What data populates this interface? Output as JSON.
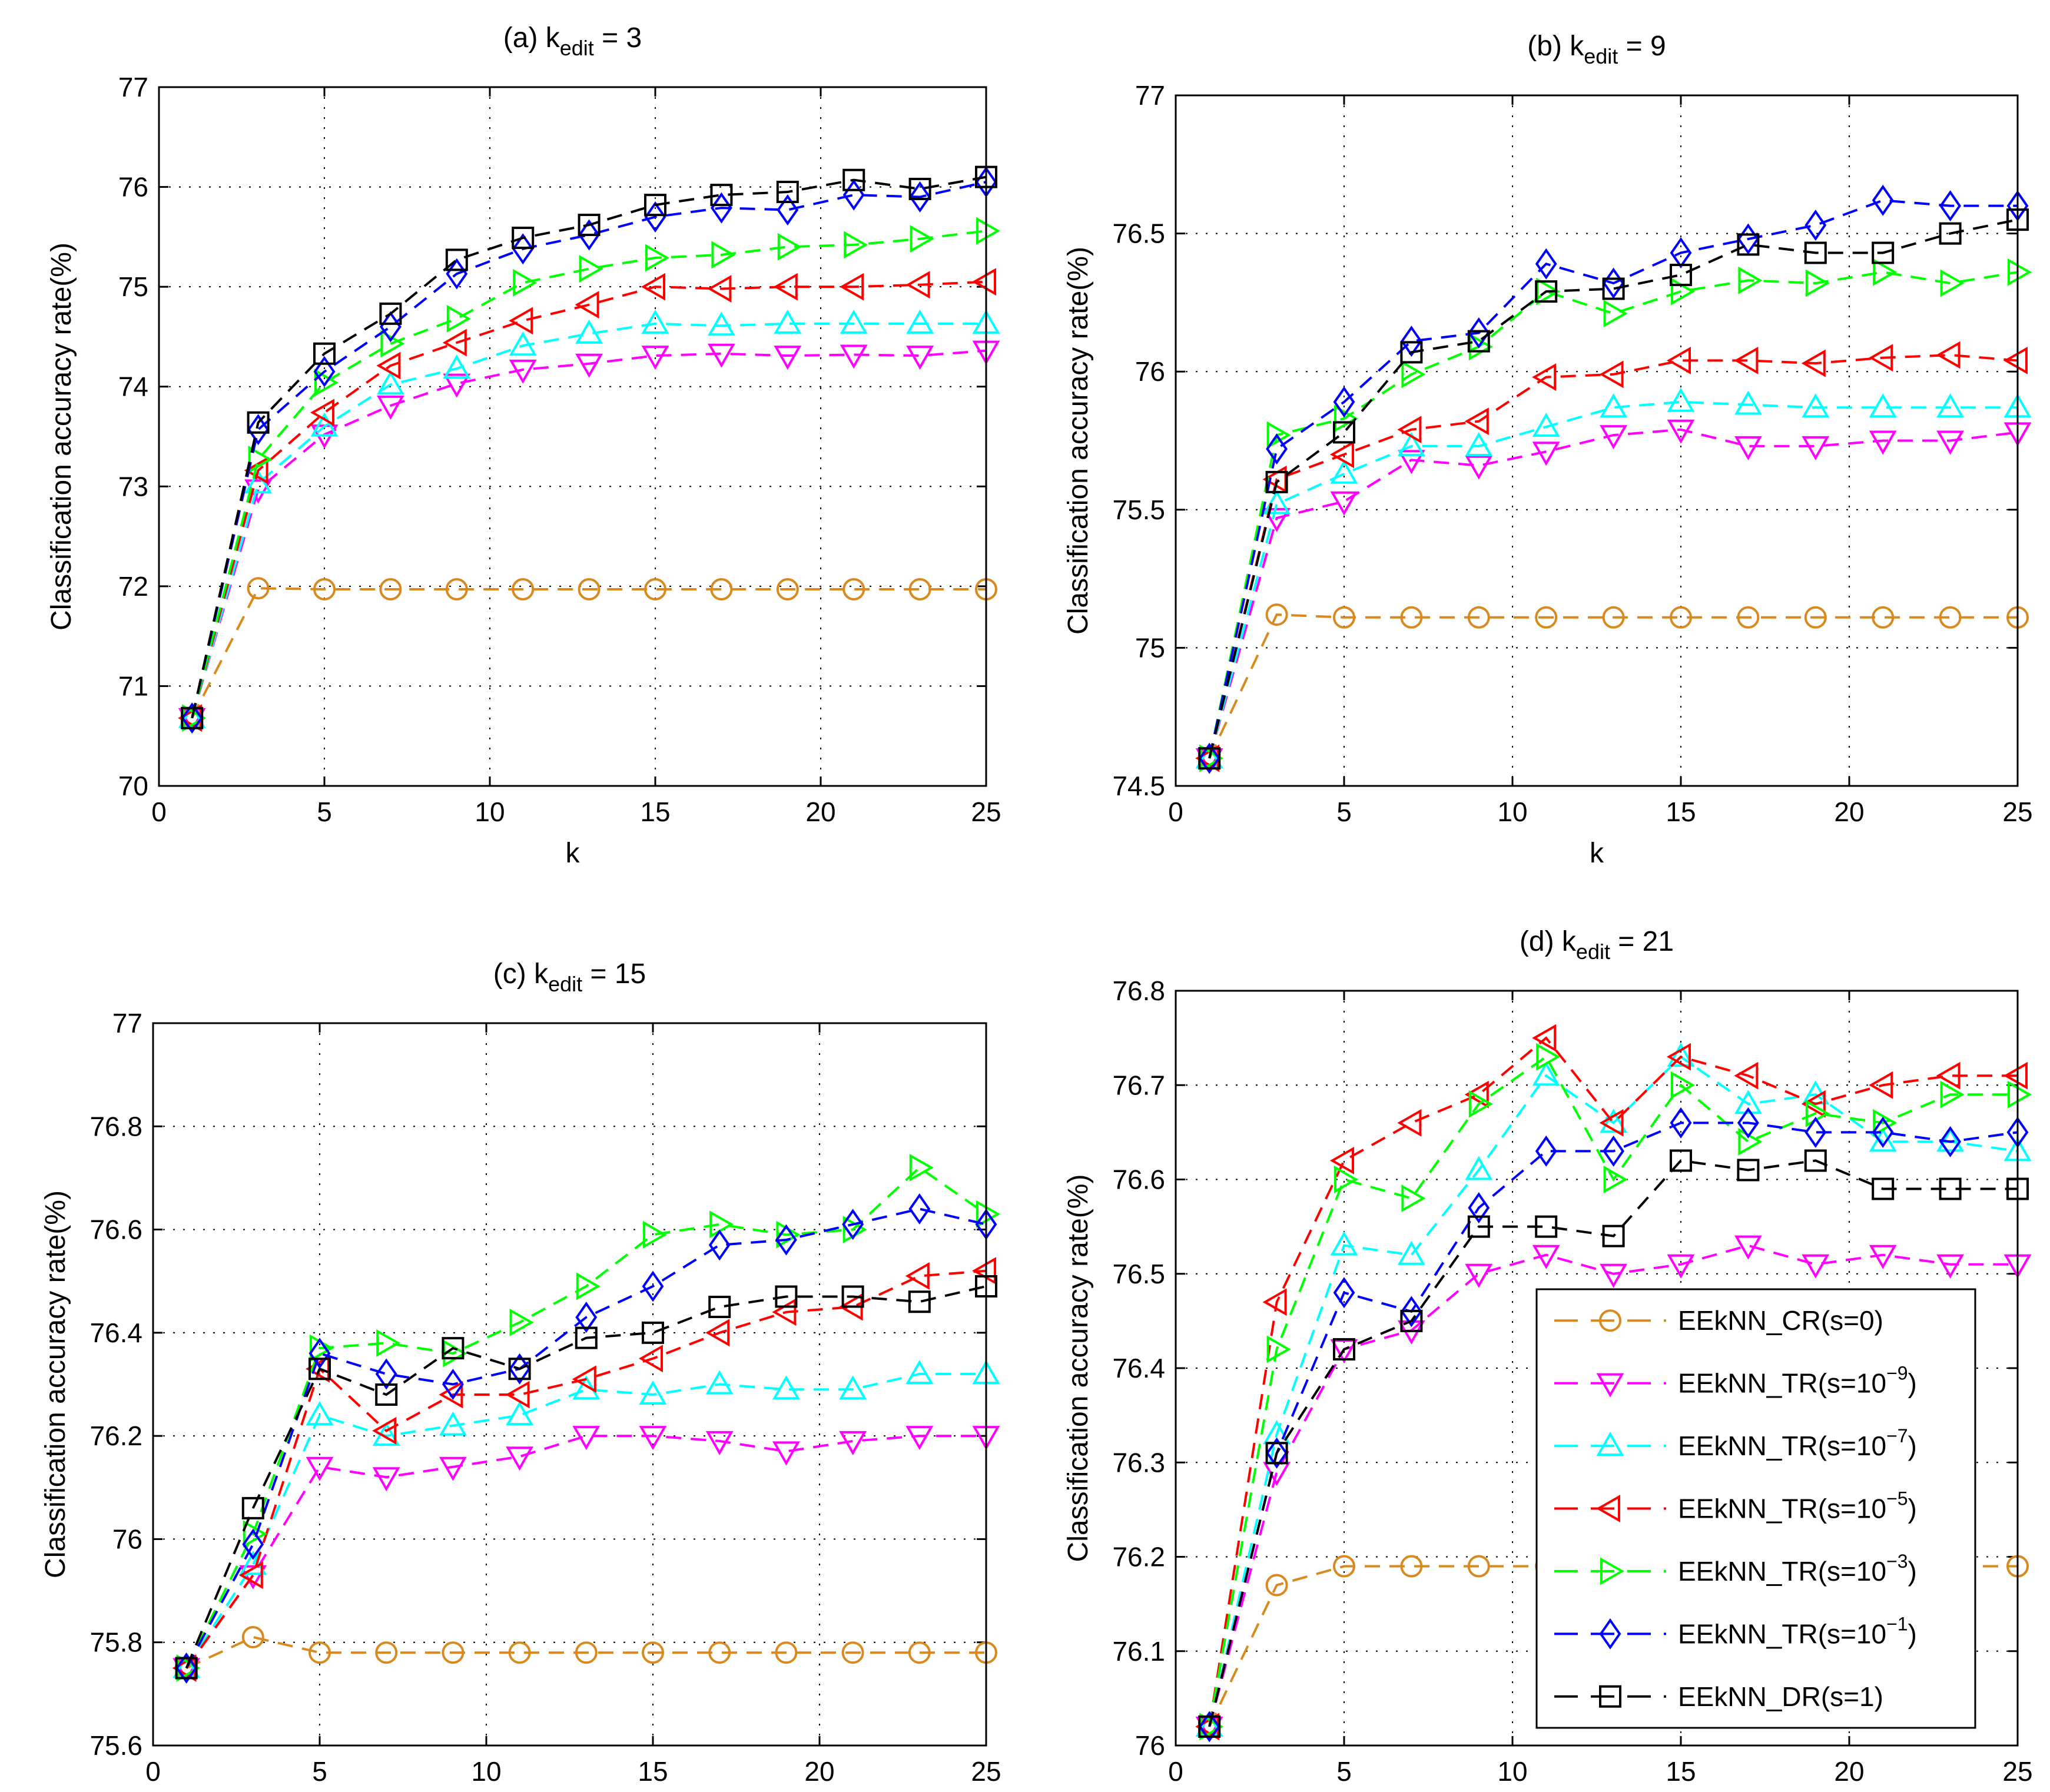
{
  "chart_data": [
    {
      "type": "line",
      "title": "(a) k",
      "title_subscript": "edit",
      "title_suffix": " = 3",
      "xlabel": "k",
      "ylabel": "Classification accuracy rate(%)",
      "xlim": [
        0,
        25
      ],
      "ylim": [
        70,
        77
      ],
      "xticks": [
        0,
        5,
        10,
        15,
        20,
        25
      ],
      "xtick_labels": [
        "0",
        "5",
        "10",
        "15",
        "20",
        "25"
      ],
      "yticks": [
        70,
        71,
        72,
        73,
        74,
        75,
        76,
        77
      ],
      "ytick_labels": [
        "70",
        "71",
        "72",
        "73",
        "74",
        "75",
        "76",
        "77"
      ],
      "grid": true,
      "x": [
        1,
        3,
        5,
        7,
        9,
        11,
        13,
        15,
        17,
        19,
        21,
        23,
        25
      ],
      "series": [
        {
          "id": "cr",
          "values": [
            70.68,
            71.98,
            71.97,
            71.97,
            71.97,
            71.97,
            71.97,
            71.97,
            71.97,
            71.97,
            71.97,
            71.97,
            71.97
          ]
        },
        {
          "id": "tr9",
          "values": [
            70.68,
            72.97,
            73.52,
            73.81,
            74.03,
            74.17,
            74.23,
            74.31,
            74.33,
            74.31,
            74.32,
            74.31,
            74.36
          ]
        },
        {
          "id": "tr7",
          "values": [
            70.68,
            73.03,
            73.6,
            74.02,
            74.18,
            74.41,
            74.53,
            74.63,
            74.61,
            74.63,
            74.63,
            74.63,
            74.63
          ]
        },
        {
          "id": "tr5",
          "values": [
            70.68,
            73.16,
            73.74,
            74.21,
            74.44,
            74.66,
            74.82,
            75.0,
            74.98,
            75.0,
            75.0,
            75.02,
            75.05
          ]
        },
        {
          "id": "tr3",
          "values": [
            70.68,
            73.27,
            74.04,
            74.43,
            74.68,
            75.04,
            75.18,
            75.29,
            75.32,
            75.4,
            75.42,
            75.48,
            75.56
          ]
        },
        {
          "id": "tr1",
          "values": [
            70.68,
            73.57,
            74.15,
            74.6,
            75.13,
            75.38,
            75.52,
            75.7,
            75.79,
            75.77,
            75.92,
            75.9,
            76.05
          ]
        },
        {
          "id": "dr",
          "values": [
            70.68,
            73.64,
            74.33,
            74.73,
            75.27,
            75.49,
            75.62,
            75.82,
            75.92,
            75.95,
            76.07,
            75.98,
            76.1
          ]
        }
      ]
    },
    {
      "type": "line",
      "title": "(b) k",
      "title_subscript": "edit",
      "title_suffix": " = 9",
      "xlabel": "k",
      "ylabel": "Classification accuracy rate(%)",
      "xlim": [
        0,
        25
      ],
      "ylim": [
        74.5,
        77
      ],
      "xticks": [
        0,
        5,
        10,
        15,
        20,
        25
      ],
      "xtick_labels": [
        "0",
        "5",
        "10",
        "15",
        "20",
        "25"
      ],
      "yticks": [
        74.5,
        75,
        75.5,
        76,
        76.5,
        77
      ],
      "ytick_labels": [
        "74.5",
        "75",
        "75.5",
        "76",
        "76.5",
        "77"
      ],
      "grid": true,
      "x": [
        1,
        3,
        5,
        7,
        9,
        11,
        13,
        15,
        17,
        19,
        21,
        23,
        25
      ],
      "series": [
        {
          "id": "cr",
          "values": [
            74.6,
            75.12,
            75.11,
            75.11,
            75.11,
            75.11,
            75.11,
            75.11,
            75.11,
            75.11,
            75.11,
            75.11,
            75.11
          ]
        },
        {
          "id": "tr9",
          "values": [
            74.6,
            75.47,
            75.53,
            75.68,
            75.66,
            75.71,
            75.77,
            75.79,
            75.73,
            75.73,
            75.75,
            75.75,
            75.78
          ]
        },
        {
          "id": "tr7",
          "values": [
            74.6,
            75.52,
            75.63,
            75.73,
            75.73,
            75.8,
            75.87,
            75.89,
            75.88,
            75.87,
            75.87,
            75.87,
            75.87
          ]
        },
        {
          "id": "tr5",
          "values": [
            74.6,
            75.61,
            75.7,
            75.79,
            75.82,
            75.98,
            75.99,
            76.04,
            76.04,
            76.03,
            76.05,
            76.06,
            76.04
          ]
        },
        {
          "id": "tr3",
          "values": [
            74.6,
            75.77,
            75.83,
            75.99,
            76.09,
            76.29,
            76.21,
            76.29,
            76.33,
            76.32,
            76.36,
            76.32,
            76.36
          ]
        },
        {
          "id": "tr1",
          "values": [
            74.6,
            75.72,
            75.89,
            76.11,
            76.14,
            76.39,
            76.32,
            76.43,
            76.48,
            76.53,
            76.62,
            76.6,
            76.6
          ]
        },
        {
          "id": "dr",
          "values": [
            74.6,
            75.6,
            75.78,
            76.07,
            76.11,
            76.29,
            76.3,
            76.35,
            76.46,
            76.43,
            76.43,
            76.5,
            76.55
          ]
        }
      ]
    },
    {
      "type": "line",
      "title": "(c) k",
      "title_subscript": "edit",
      "title_suffix": " = 15",
      "xlabel": "k",
      "ylabel": "Classification accuracy rate(%)",
      "xlim": [
        0,
        25
      ],
      "ylim": [
        75.6,
        77
      ],
      "xticks": [
        0,
        5,
        10,
        15,
        20,
        25
      ],
      "xtick_labels": [
        "0",
        "5",
        "10",
        "15",
        "20",
        "25"
      ],
      "yticks": [
        75.6,
        75.8,
        76,
        76.2,
        76.4,
        76.6,
        76.8,
        77
      ],
      "ytick_labels": [
        "75.6",
        "75.8",
        "76",
        "76.2",
        "76.4",
        "76.6",
        "76.8",
        "77"
      ],
      "grid": true,
      "x": [
        1,
        3,
        5,
        7,
        9,
        11,
        13,
        15,
        17,
        19,
        21,
        23,
        25
      ],
      "series": [
        {
          "id": "cr",
          "values": [
            75.75,
            75.81,
            75.78,
            75.78,
            75.78,
            75.78,
            75.78,
            75.78,
            75.78,
            75.78,
            75.78,
            75.78,
            75.78
          ]
        },
        {
          "id": "tr9",
          "values": [
            75.75,
            75.93,
            76.14,
            76.12,
            76.14,
            76.16,
            76.2,
            76.2,
            76.19,
            76.17,
            76.19,
            76.2,
            76.2
          ]
        },
        {
          "id": "tr7",
          "values": [
            75.75,
            75.95,
            76.24,
            76.2,
            76.22,
            76.24,
            76.29,
            76.28,
            76.3,
            76.29,
            76.29,
            76.32,
            76.32
          ]
        },
        {
          "id": "tr5",
          "values": [
            75.75,
            75.93,
            76.33,
            76.21,
            76.28,
            76.28,
            76.31,
            76.35,
            76.4,
            76.44,
            76.45,
            76.51,
            76.52
          ]
        },
        {
          "id": "tr3",
          "values": [
            75.75,
            76.01,
            76.37,
            76.38,
            76.36,
            76.42,
            76.49,
            76.59,
            76.61,
            76.59,
            76.6,
            76.72,
            76.63
          ]
        },
        {
          "id": "tr1",
          "values": [
            75.75,
            75.99,
            76.36,
            76.32,
            76.3,
            76.33,
            76.43,
            76.49,
            76.57,
            76.58,
            76.61,
            76.64,
            76.61
          ]
        },
        {
          "id": "dr",
          "values": [
            75.75,
            76.06,
            76.33,
            76.28,
            76.37,
            76.33,
            76.39,
            76.4,
            76.45,
            76.47,
            76.47,
            76.46,
            76.49
          ]
        }
      ]
    },
    {
      "type": "line",
      "title": "(d) k",
      "title_subscript": "edit",
      "title_suffix": " = 21",
      "xlabel": "k",
      "ylabel": "Classification accuracy rate(%)",
      "xlim": [
        0,
        25
      ],
      "ylim": [
        76,
        76.8
      ],
      "xticks": [
        0,
        5,
        10,
        15,
        20,
        25
      ],
      "xtick_labels": [
        "0",
        "5",
        "10",
        "15",
        "20",
        "25"
      ],
      "yticks": [
        76,
        76.1,
        76.2,
        76.3,
        76.4,
        76.5,
        76.6,
        76.7,
        76.8
      ],
      "ytick_labels": [
        "76",
        "76.1",
        "76.2",
        "76.3",
        "76.4",
        "76.5",
        "76.6",
        "76.7",
        "76.8"
      ],
      "grid": true,
      "x": [
        1,
        3,
        5,
        7,
        9,
        11,
        13,
        15,
        17,
        19,
        21,
        23,
        25
      ],
      "series": [
        {
          "id": "cr",
          "values": [
            76.02,
            76.17,
            76.19,
            76.19,
            76.19,
            76.19,
            76.19,
            76.19,
            76.19,
            76.19,
            76.19,
            76.19,
            76.19
          ]
        },
        {
          "id": "tr9",
          "values": [
            76.02,
            76.29,
            76.42,
            76.44,
            76.5,
            76.52,
            76.5,
            76.51,
            76.53,
            76.51,
            76.52,
            76.51,
            76.51
          ]
        },
        {
          "id": "tr7",
          "values": [
            76.02,
            76.33,
            76.53,
            76.52,
            76.61,
            76.71,
            76.66,
            76.73,
            76.68,
            76.69,
            76.64,
            76.64,
            76.63
          ]
        },
        {
          "id": "tr5",
          "values": [
            76.02,
            76.47,
            76.62,
            76.66,
            76.69,
            76.75,
            76.66,
            76.73,
            76.71,
            76.68,
            76.7,
            76.71,
            76.71
          ]
        },
        {
          "id": "tr3",
          "values": [
            76.02,
            76.42,
            76.6,
            76.58,
            76.68,
            76.73,
            76.6,
            76.7,
            76.64,
            76.67,
            76.66,
            76.69,
            76.69
          ]
        },
        {
          "id": "tr1",
          "values": [
            76.02,
            76.31,
            76.48,
            76.46,
            76.57,
            76.63,
            76.63,
            76.66,
            76.66,
            76.65,
            76.65,
            76.64,
            76.65
          ]
        },
        {
          "id": "dr",
          "values": [
            76.02,
            76.31,
            76.42,
            76.45,
            76.55,
            76.55,
            76.54,
            76.62,
            76.61,
            76.62,
            76.59,
            76.59,
            76.59
          ]
        }
      ],
      "legend": {
        "placement": "lower-right",
        "entries": [
          {
            "series": "cr",
            "label": "EEkNN_CR(s=0)",
            "exponent": ""
          },
          {
            "series": "tr9",
            "label": "EEkNN_TR(s=10",
            "exponent": "−9",
            "suffix": ")"
          },
          {
            "series": "tr7",
            "label": "EEkNN_TR(s=10",
            "exponent": "−7",
            "suffix": ")"
          },
          {
            "series": "tr5",
            "label": "EEkNN_TR(s=10",
            "exponent": "−5",
            "suffix": ")"
          },
          {
            "series": "tr3",
            "label": "EEkNN_TR(s=10",
            "exponent": "−3",
            "suffix": ")"
          },
          {
            "series": "tr1",
            "label": "EEkNN_TR(s=10",
            "exponent": "−1",
            "suffix": ")"
          },
          {
            "series": "dr",
            "label": "EEkNN_DR(s=1)",
            "exponent": ""
          }
        ]
      }
    }
  ],
  "series_styles": {
    "cr": {
      "color": "#D98A1F",
      "marker": "circle"
    },
    "tr9": {
      "color": "#FF00FF",
      "marker": "triangle-down"
    },
    "tr7": {
      "color": "#00FFFF",
      "marker": "triangle-up"
    },
    "tr5": {
      "color": "#FF0000",
      "marker": "triangle-left"
    },
    "tr3": {
      "color": "#00FF00",
      "marker": "triangle-right"
    },
    "tr1": {
      "color": "#0000FF",
      "marker": "diamond"
    },
    "dr": {
      "color": "#000000",
      "marker": "square"
    }
  }
}
